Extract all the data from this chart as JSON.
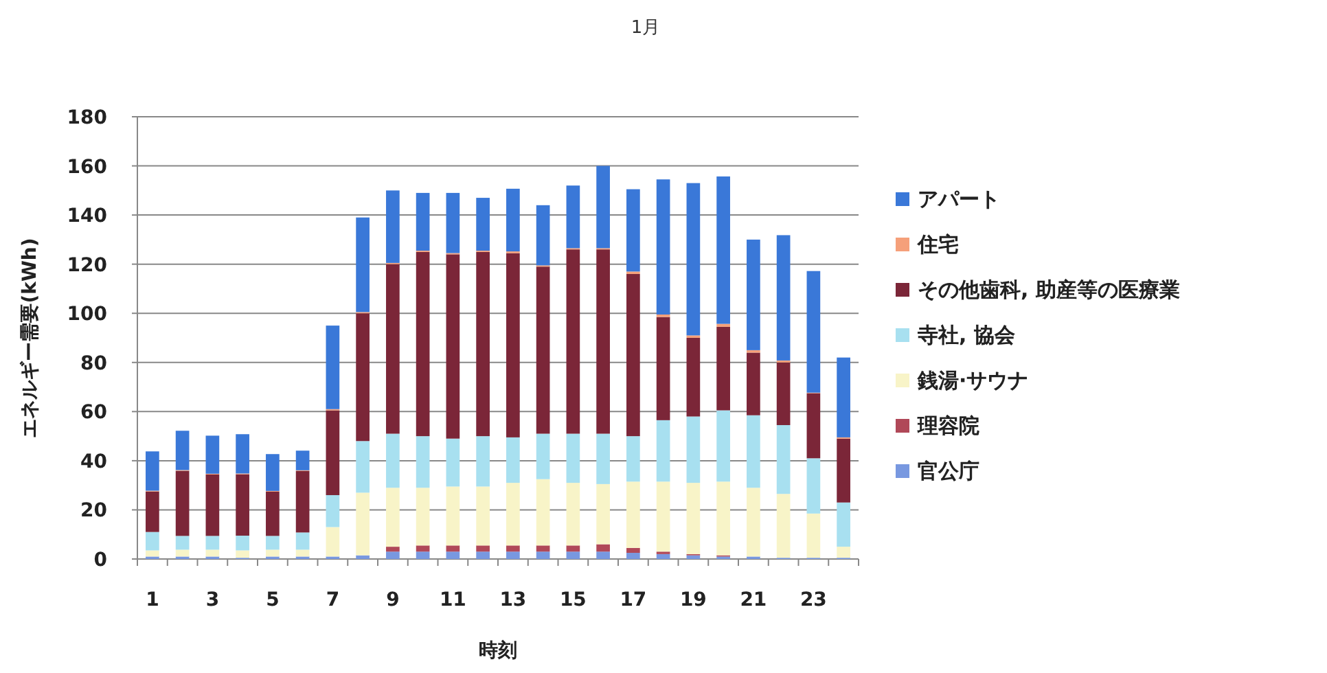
{
  "chart_data": {
    "type": "bar",
    "title": "1月",
    "xlabel": "時刻",
    "ylabel": "エネルギー需要(kWh)",
    "categories": [
      "1",
      null,
      "3",
      null,
      "5",
      null,
      "7",
      null,
      "9",
      null,
      "11",
      null,
      "13",
      null,
      "15",
      null,
      "17",
      null,
      "19",
      null,
      "21",
      null,
      "23",
      null
    ],
    "stacked": true,
    "grid": "y",
    "legend": "right",
    "ylim": [
      0,
      180
    ],
    "yticks": [
      0,
      20,
      40,
      60,
      80,
      100,
      120,
      140,
      160,
      180
    ],
    "series": [
      {
        "name": "官公庁",
        "color": "#7898e0",
        "values": [
          1,
          1,
          1,
          0.5,
          1,
          1,
          1,
          1.5,
          3,
          3,
          3,
          3,
          3,
          3,
          3,
          3,
          2.5,
          2,
          1.5,
          1,
          1,
          0.5,
          0.5,
          0.5
        ]
      },
      {
        "name": "理容院",
        "color": "#b04858",
        "values": [
          0,
          0,
          0,
          0,
          0,
          0,
          0,
          0,
          2,
          2.5,
          2.5,
          2.5,
          2.5,
          2.5,
          2.5,
          3,
          2,
          1,
          0.5,
          0.5,
          0,
          0,
          0,
          0
        ]
      },
      {
        "name": "銭湯·サウナ",
        "color": "#f8f4c8",
        "values": [
          2.5,
          2.8,
          2.8,
          3,
          2.8,
          2.8,
          12,
          25.5,
          24,
          23.5,
          24,
          24,
          25.5,
          27,
          25.5,
          24.5,
          27,
          28.5,
          29,
          30,
          28,
          26,
          18,
          4.5
        ]
      },
      {
        "name": "寺社, 協会",
        "color": "#a8e0f0",
        "values": [
          7.5,
          5.6,
          5.6,
          6,
          5.6,
          7,
          13,
          21,
          22,
          21,
          19.5,
          20.5,
          18.5,
          18.5,
          20,
          20.5,
          18.5,
          25,
          27,
          29,
          29.5,
          28,
          22.5,
          18
        ]
      },
      {
        "name": "その他歯科, 助産等の医療業",
        "color": "#7b2638",
        "values": [
          16.5,
          26.5,
          25,
          25,
          18,
          25,
          34.5,
          52,
          69,
          75,
          75,
          75,
          75,
          68,
          75,
          75,
          66,
          42,
          32,
          34,
          25.5,
          25.5,
          26.5,
          26
        ]
      },
      {
        "name": "住宅",
        "color": "#f5a07a",
        "values": [
          0.3,
          0.3,
          0.3,
          0.3,
          0.3,
          0.3,
          0.5,
          0.5,
          0.5,
          0.5,
          0.5,
          0.5,
          0.7,
          0.5,
          0.5,
          0.5,
          1,
          1,
          1,
          1.2,
          1,
          0.8,
          0.2,
          0.5
        ]
      },
      {
        "name": "アパート",
        "color": "#3a78d8",
        "values": [
          16,
          16,
          15.5,
          16,
          15,
          8,
          34,
          38.5,
          29.5,
          23.5,
          24.5,
          21.5,
          25.5,
          24.5,
          25.5,
          33.5,
          33.5,
          55,
          62,
          60,
          45,
          51,
          49.5,
          32.5
        ]
      }
    ]
  }
}
